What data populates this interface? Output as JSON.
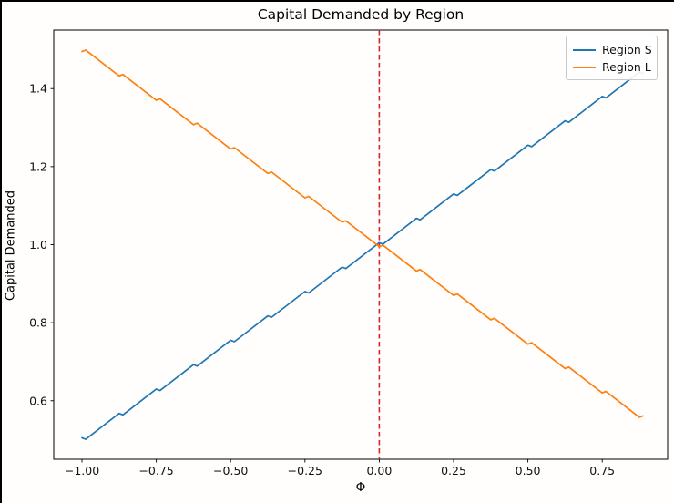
{
  "chart_data": {
    "type": "line",
    "title": "Capital Demanded by Region",
    "xlabel": "Φ",
    "ylabel": "Capital Demanded",
    "xlim": [
      -1.095,
      0.97
    ],
    "ylim": [
      0.45,
      1.55
    ],
    "xtick_values": [
      -1.0,
      -0.75,
      -0.5,
      -0.25,
      0.0,
      0.25,
      0.5,
      0.75
    ],
    "xtick_labels": [
      "−1.00",
      "−0.75",
      "−0.50",
      "−0.25",
      "0.00",
      "0.25",
      "0.50",
      "0.75"
    ],
    "ytick_values": [
      0.6,
      0.8,
      1.0,
      1.2,
      1.4
    ],
    "ytick_labels": [
      "0.6",
      "0.8",
      "1.0",
      "1.2",
      "1.4"
    ],
    "grid": false,
    "legend_position": "upper-right",
    "vline": {
      "x": 0.0,
      "color": "#d62728",
      "style": "dashed"
    },
    "series": [
      {
        "name": "Region S",
        "color": "#1f77b4",
        "points": [
          [
            -1.0,
            0.505
          ],
          [
            -0.9875,
            0.50125
          ],
          [
            -0.875,
            0.5675
          ],
          [
            -0.8625,
            0.56375
          ],
          [
            -0.75,
            0.63
          ],
          [
            -0.7375,
            0.62625
          ],
          [
            -0.625,
            0.6925
          ],
          [
            -0.6125,
            0.68875
          ],
          [
            -0.5,
            0.755
          ],
          [
            -0.4875,
            0.75125
          ],
          [
            -0.375,
            0.8175
          ],
          [
            -0.3625,
            0.81375
          ],
          [
            -0.25,
            0.88
          ],
          [
            -0.2375,
            0.87625
          ],
          [
            -0.125,
            0.9425
          ],
          [
            -0.1125,
            0.93875
          ],
          [
            0.0,
            1.005
          ],
          [
            0.0125,
            1.00125
          ],
          [
            0.125,
            1.0675
          ],
          [
            0.1375,
            1.06375
          ],
          [
            0.25,
            1.13
          ],
          [
            0.2625,
            1.12625
          ],
          [
            0.375,
            1.1925
          ],
          [
            0.3875,
            1.18875
          ],
          [
            0.5,
            1.255
          ],
          [
            0.5125,
            1.25125
          ],
          [
            0.625,
            1.3175
          ],
          [
            0.6375,
            1.31375
          ],
          [
            0.75,
            1.38
          ],
          [
            0.7625,
            1.37625
          ],
          [
            0.875,
            1.4425
          ],
          [
            0.8875,
            1.43875
          ]
        ]
      },
      {
        "name": "Region L",
        "color": "#ff7f0e",
        "points": [
          [
            -1.0,
            1.495
          ],
          [
            -0.9875,
            1.49875
          ],
          [
            -0.875,
            1.4325
          ],
          [
            -0.8625,
            1.43625
          ],
          [
            -0.75,
            1.37
          ],
          [
            -0.7375,
            1.37375
          ],
          [
            -0.625,
            1.3075
          ],
          [
            -0.6125,
            1.31125
          ],
          [
            -0.5,
            1.245
          ],
          [
            -0.4875,
            1.24875
          ],
          [
            -0.375,
            1.1825
          ],
          [
            -0.3625,
            1.18625
          ],
          [
            -0.25,
            1.12
          ],
          [
            -0.2375,
            1.12375
          ],
          [
            -0.125,
            1.0575
          ],
          [
            -0.1125,
            1.06125
          ],
          [
            0.0,
            0.995
          ],
          [
            0.0125,
            0.99875
          ],
          [
            0.125,
            0.9325
          ],
          [
            0.1375,
            0.93625
          ],
          [
            0.25,
            0.87
          ],
          [
            0.2625,
            0.87375
          ],
          [
            0.375,
            0.8075
          ],
          [
            0.3875,
            0.81125
          ],
          [
            0.5,
            0.745
          ],
          [
            0.5125,
            0.74875
          ],
          [
            0.625,
            0.6825
          ],
          [
            0.6375,
            0.68625
          ],
          [
            0.75,
            0.62
          ],
          [
            0.7625,
            0.62375
          ],
          [
            0.875,
            0.5575
          ],
          [
            0.8875,
            0.56125
          ]
        ]
      }
    ]
  },
  "colors": {
    "spine": "#000000",
    "tick_text": "#111111",
    "legend_border": "#c9c9c9"
  }
}
